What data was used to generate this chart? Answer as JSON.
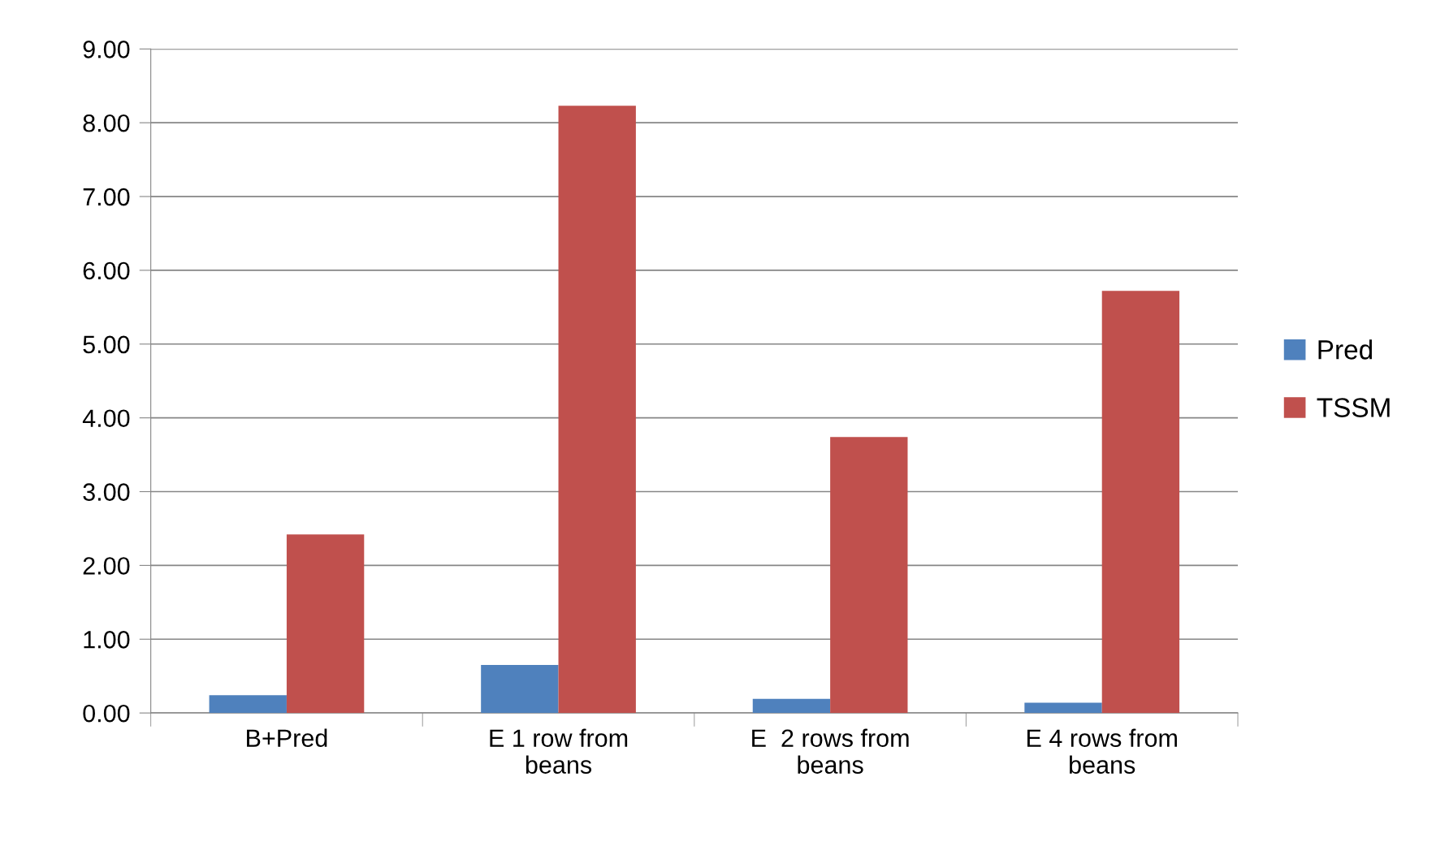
{
  "chart_data": {
    "type": "bar",
    "categories": [
      "B+Pred",
      "E 1 row from\nbeans",
      "E  2 rows from\nbeans",
      "E 4 rows from\nbeans"
    ],
    "series": [
      {
        "name": "Pred",
        "color": "#4f81bd",
        "values": [
          0.24,
          0.65,
          0.19,
          0.14
        ]
      },
      {
        "name": "TSSM",
        "color": "#c0504d",
        "values": [
          2.42,
          8.23,
          3.74,
          5.72
        ]
      }
    ],
    "ylim": [
      0,
      9
    ],
    "yticks": [
      {
        "value": 0,
        "label": "0.00"
      },
      {
        "value": 1,
        "label": "1.00"
      },
      {
        "value": 2,
        "label": "2.00"
      },
      {
        "value": 3,
        "label": "3.00"
      },
      {
        "value": 4,
        "label": "4.00"
      },
      {
        "value": 5,
        "label": "5.00"
      },
      {
        "value": 6,
        "label": "6.00"
      },
      {
        "value": 7,
        "label": "7.00"
      },
      {
        "value": 8,
        "label": "8.00"
      },
      {
        "value": 9,
        "label": "9.00"
      }
    ],
    "grid": "y",
    "legend": "right"
  }
}
